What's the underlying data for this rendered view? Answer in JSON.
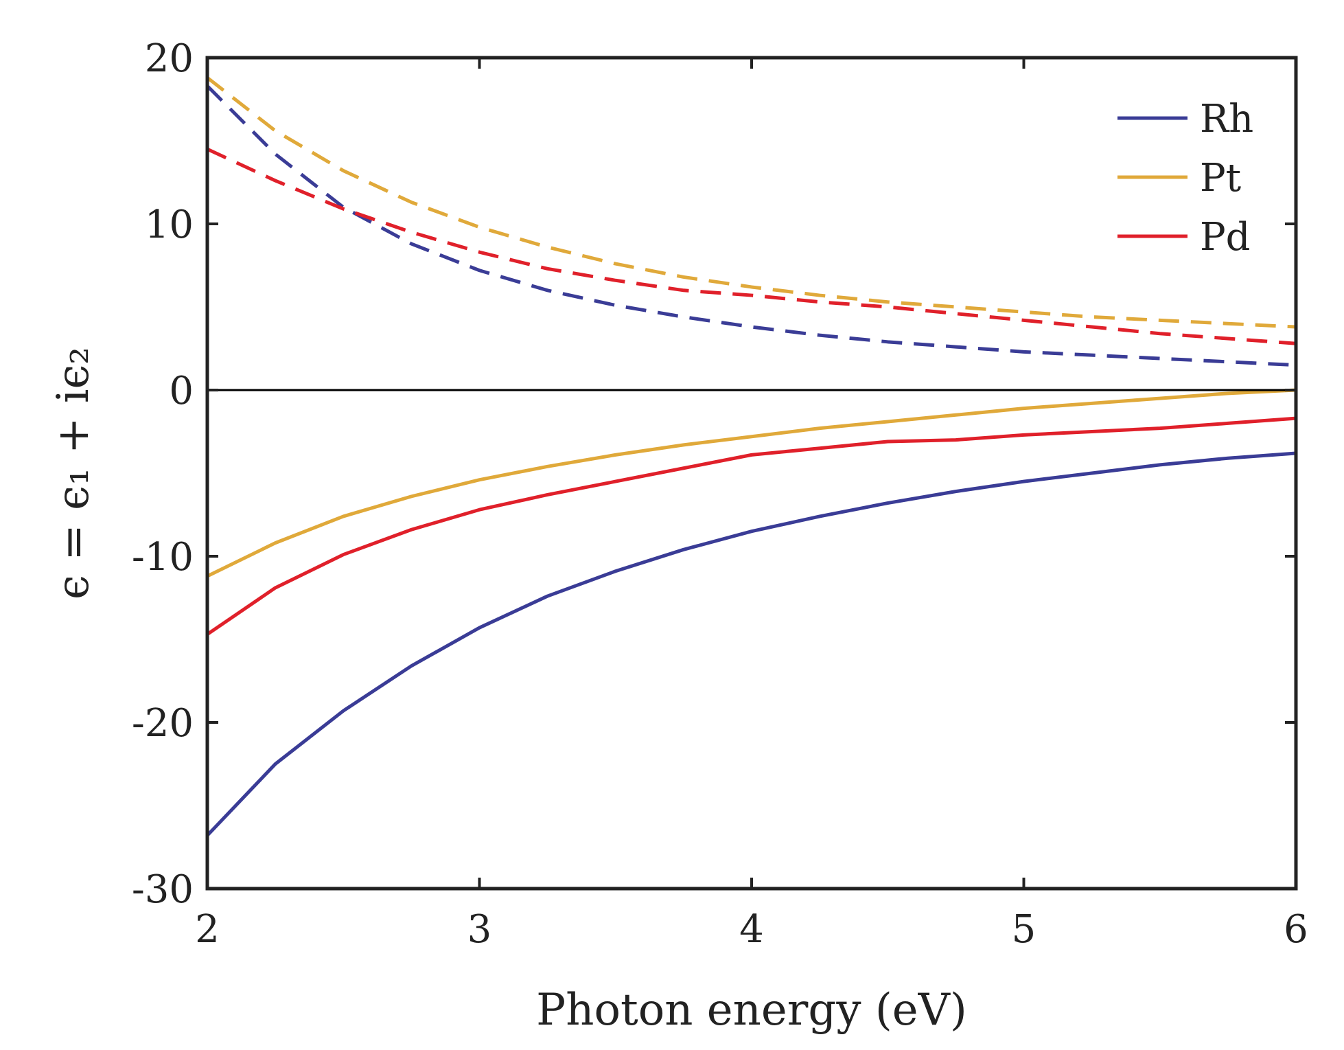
{
  "chart_data": {
    "type": "line",
    "xlabel": "Photon energy (eV)",
    "ylabel": "ϵ = ϵ₁ + iϵ₂",
    "xlim": [
      2,
      6
    ],
    "ylim": [
      -30,
      20
    ],
    "x_ticks": [
      2,
      3,
      4,
      5,
      6
    ],
    "y_ticks": [
      20,
      10,
      0,
      -10,
      -20,
      -30
    ],
    "x_tick_labels": [
      "2",
      "3",
      "4",
      "5",
      "6"
    ],
    "y_tick_labels": [
      "20",
      "10",
      "0",
      "-10",
      "-20",
      "-30"
    ],
    "zero_line": true,
    "grid": false,
    "legend_position": "top-right",
    "x": [
      2.0,
      2.25,
      2.5,
      2.75,
      3.0,
      3.25,
      3.5,
      3.75,
      4.0,
      4.25,
      4.5,
      4.75,
      5.0,
      5.25,
      5.5,
      5.75,
      6.0
    ],
    "series": [
      {
        "name": "Rh",
        "color": "#3a3c96",
        "real": [
          -26.8,
          -22.5,
          -19.3,
          -16.6,
          -14.3,
          -12.4,
          -10.9,
          -9.6,
          -8.5,
          -7.6,
          -6.8,
          -6.1,
          -5.5,
          -5.0,
          -4.5,
          -4.1,
          -3.8
        ],
        "imag": [
          18.3,
          14.2,
          11.0,
          8.8,
          7.2,
          6.0,
          5.1,
          4.4,
          3.8,
          3.3,
          2.9,
          2.6,
          2.3,
          2.1,
          1.9,
          1.7,
          1.5
        ]
      },
      {
        "name": "Pt",
        "color": "#e0a93a",
        "real": [
          -11.2,
          -9.2,
          -7.6,
          -6.4,
          -5.4,
          -4.6,
          -3.9,
          -3.3,
          -2.8,
          -2.3,
          -1.9,
          -1.5,
          -1.1,
          -0.8,
          -0.5,
          -0.2,
          0.0
        ],
        "imag": [
          18.8,
          15.6,
          13.2,
          11.3,
          9.8,
          8.6,
          7.6,
          6.8,
          6.2,
          5.7,
          5.3,
          5.0,
          4.7,
          4.4,
          4.2,
          4.0,
          3.8
        ]
      },
      {
        "name": "Pd",
        "color": "#e0202a",
        "real": [
          -14.7,
          -11.9,
          -9.9,
          -8.4,
          -7.2,
          -6.3,
          -5.5,
          -4.7,
          -3.9,
          -3.5,
          -3.1,
          -3.0,
          -2.7,
          -2.5,
          -2.3,
          -2.0,
          -1.7
        ],
        "imag": [
          14.5,
          12.6,
          10.9,
          9.5,
          8.3,
          7.3,
          6.6,
          6.0,
          5.7,
          5.3,
          5.0,
          4.6,
          4.2,
          3.8,
          3.4,
          3.1,
          2.8
        ]
      }
    ]
  }
}
